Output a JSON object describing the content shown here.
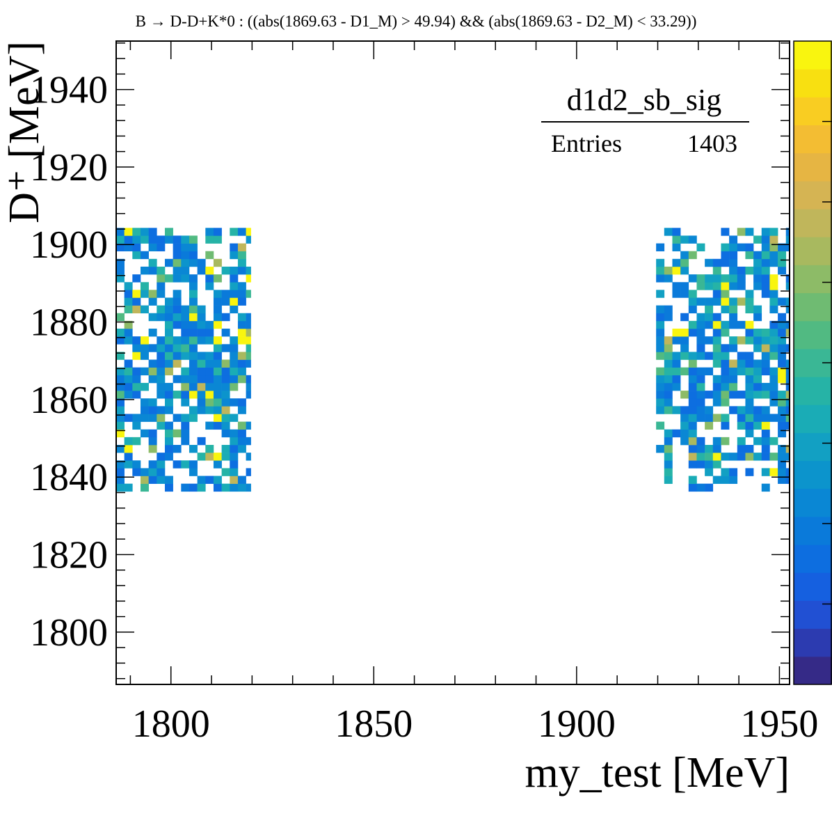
{
  "chart_data": {
    "type": "heatmap",
    "title": "B → D-D+K*0 : ((abs(1869.63 - D1_M) > 49.94) && (abs(1869.63 - D2_M) < 33.29))",
    "xlabel": "my_test [MeV]",
    "ylabel": "D⁺ [MeV]",
    "xlim": [
      1786.5,
      1952.5
    ],
    "ylim": [
      1786.5,
      1952.5
    ],
    "x_ticks": [
      "1800",
      "1850",
      "1900",
      "1950"
    ],
    "y_ticks": [
      "1800",
      "1820",
      "1840",
      "1860",
      "1880",
      "1900",
      "1920",
      "1940"
    ],
    "stats_box": {
      "name": "d1d2_sb_sig",
      "entries_label": "Entries",
      "entries_value": "1403"
    },
    "bin_width": 2,
    "populated_regions": [
      {
        "x_range": [
          1786.5,
          1819.7
        ],
        "y_range": [
          1836.3,
          1902.9
        ]
      },
      {
        "x_range": [
          1919.6,
          1952.5
        ],
        "y_range": [
          1836.3,
          1902.9
        ]
      }
    ],
    "z_range": [
      1,
      3
    ],
    "palette": [
      "#352a87",
      "#2c3bb0",
      "#2150d3",
      "#1560e0",
      "#0d6ee0",
      "#0a7ada",
      "#0a87d4",
      "#0c94cc",
      "#12a0c3",
      "#1aacb6",
      "#26b3a6",
      "#3ab795",
      "#51ba82",
      "#6fbb72",
      "#8dbb67",
      "#a8b95f",
      "#c0b65b",
      "#d5b453",
      "#e6b543",
      "#f3bd33",
      "#f9cd22",
      "#f8e011",
      "#f9f50f"
    ]
  }
}
